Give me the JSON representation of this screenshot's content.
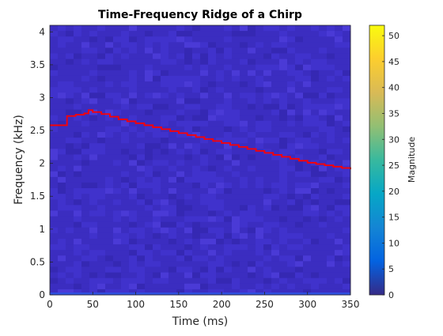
{
  "chart_data": {
    "type": "heatmap",
    "title": "Time-Frequency Ridge of a Chirp",
    "xlabel": "Time (ms)",
    "ylabel": "Frequency (kHz)",
    "xlim": [
      0,
      350
    ],
    "ylim": [
      0,
      4.1
    ],
    "xticks": [
      0,
      50,
      100,
      150,
      200,
      250,
      300,
      350
    ],
    "yticks": [
      0,
      0.5,
      1,
      1.5,
      2,
      2.5,
      3,
      3.5,
      4
    ],
    "xtick_labels": [
      "0",
      "50",
      "100",
      "150",
      "200",
      "250",
      "300",
      "350"
    ],
    "ytick_labels": [
      "0",
      "0.5",
      "1",
      "1.5",
      "2",
      "2.5",
      "3",
      "3.5",
      "4"
    ],
    "grid": false,
    "colorbar": {
      "label": "Magnitude",
      "range": [
        0,
        52
      ],
      "ticks": [
        0,
        5,
        10,
        15,
        20,
        25,
        30,
        35,
        40,
        45,
        50
      ],
      "tick_labels": [
        "0",
        "5",
        "10",
        "15",
        "20",
        "25",
        "30",
        "35",
        "40",
        "45",
        "50"
      ],
      "colormap": "parula"
    },
    "ridge": {
      "color": "#ff0000",
      "x": [
        0,
        10,
        20,
        30,
        40,
        45,
        50,
        60,
        70,
        80,
        90,
        100,
        110,
        120,
        130,
        140,
        150,
        160,
        170,
        180,
        190,
        200,
        210,
        220,
        230,
        240,
        250,
        260,
        270,
        280,
        290,
        300,
        310,
        320,
        330,
        340,
        350
      ],
      "y": [
        2.58,
        2.58,
        2.72,
        2.74,
        2.76,
        2.81,
        2.78,
        2.75,
        2.71,
        2.67,
        2.64,
        2.61,
        2.58,
        2.55,
        2.52,
        2.49,
        2.46,
        2.43,
        2.4,
        2.37,
        2.34,
        2.31,
        2.28,
        2.25,
        2.22,
        2.19,
        2.16,
        2.13,
        2.1,
        2.07,
        2.04,
        2.01,
        1.99,
        1.97,
        1.95,
        1.93,
        1.91
      ]
    },
    "background_magnitude_range": [
      0,
      6
    ]
  }
}
